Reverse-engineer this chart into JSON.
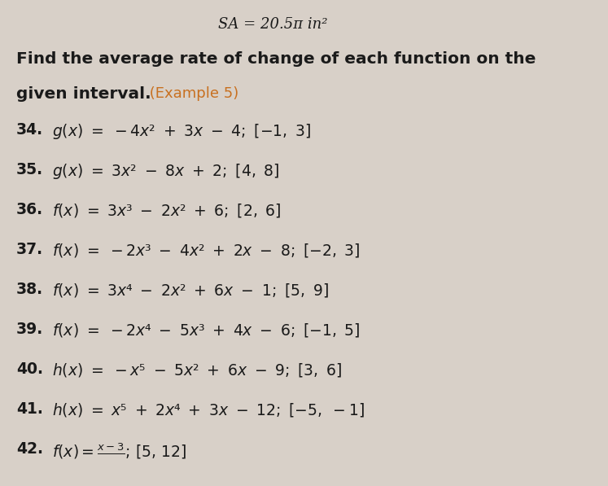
{
  "background_color": "#d8d0c8",
  "sa_text": "SA = 20.5π in²",
  "header_bold": "Find the average rate of change of each function on the\ngiven interval.",
  "header_example": " (Example 5)",
  "problems": [
    {
      "num": "34.",
      "text": "g(x) = −4x² + 3x − 4; [−1, 3]"
    },
    {
      "num": "35.",
      "text": "g(x) = 3x² − 8x + 2; [4, 8]"
    },
    {
      "num": "36.",
      "text": "f(x) = 3x³ − 2x² + 6; [2, 6]"
    },
    {
      "num": "37.",
      "text": "f(x) = −2x³ − 4x² + 2x − 8; [−2, 3]"
    },
    {
      "num": "38.",
      "text": "f(x) = 3x⁴ − 2x² + 6x − 1; [5, 9]"
    },
    {
      "num": "39.",
      "text": "f(x) = −2x⁴ − 5x³ + 4x − 6; [−1, 5]"
    },
    {
      "num": "40.",
      "text": "h(x) = −x⁵ − 5x² + 6x − 9; [3, 6]"
    },
    {
      "num": "41.",
      "text": "h(x) = x⁵ + 2x⁴ + 3x − 12; [−5, −1]"
    },
    {
      "num": "42.",
      "text": "f(x) = (x − 3)/□; [5, 12]"
    }
  ],
  "text_color": "#1a1a1a",
  "example_color": "#c87020",
  "font_size_sa": 13,
  "font_size_header": 14.5,
  "font_size_problems": 13.5
}
